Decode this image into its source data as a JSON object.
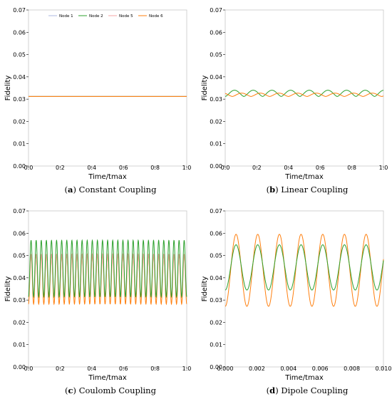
{
  "chart_data": [
    {
      "type": "line",
      "panel_letter": "a",
      "caption": "Constant Coupling",
      "xlabel": "Time/tmax",
      "ylabel": "Fidelity",
      "xlim": [
        0.0,
        1.0
      ],
      "ylim": [
        0.0,
        0.07
      ],
      "xticks": [
        "0.0",
        "0.2",
        "0.4",
        "0.6",
        "0.8",
        "1.0"
      ],
      "yticks": [
        "0.00",
        "0.01",
        "0.02",
        "0.03",
        "0.04",
        "0.05",
        "0.06",
        "0.07"
      ],
      "legend": "top",
      "grid": false,
      "series": [
        {
          "name": "Node 1",
          "color": "#aeb8e0",
          "pattern": {
            "kind": "flat",
            "value": 0.0312
          }
        },
        {
          "name": "Node 2",
          "color": "#2ca02c",
          "pattern": {
            "kind": "flat",
            "value": 0.0312
          }
        },
        {
          "name": "Node 5",
          "color": "#f4a6a6",
          "pattern": {
            "kind": "flat",
            "value": 0.0312
          }
        },
        {
          "name": "Node 6",
          "color": "#ff7f0e",
          "pattern": {
            "kind": "flat",
            "value": 0.0312
          }
        }
      ]
    },
    {
      "type": "line",
      "panel_letter": "b",
      "caption": "Linear Coupling",
      "xlabel": "Time/tmax",
      "ylabel": "Fidelity",
      "xlim": [
        0.0,
        1.0
      ],
      "ylim": [
        0.0,
        0.07
      ],
      "xticks": [
        "0.0",
        "0.2",
        "0.4",
        "0.6",
        "0.8",
        "1.0"
      ],
      "yticks": [
        "0.00",
        "0.01",
        "0.02",
        "0.03",
        "0.04",
        "0.05",
        "0.06",
        "0.07"
      ],
      "grid": false,
      "series": [
        {
          "color": "#2ca02c",
          "pattern": {
            "kind": "bumps",
            "base": 0.0312,
            "amp": 0.0028,
            "period": 0.118,
            "phase": 0.0
          }
        },
        {
          "color": "#ff7f0e",
          "pattern": {
            "kind": "bumps",
            "base": 0.0312,
            "amp": 0.0015,
            "period": 0.118,
            "phase": 0.045
          }
        }
      ]
    },
    {
      "type": "line",
      "panel_letter": "c",
      "caption": "Coulomb Coupling",
      "xlabel": "Time/tmax",
      "ylabel": "Fidelity",
      "xlim": [
        0.0,
        1.0
      ],
      "ylim": [
        0.0,
        0.07
      ],
      "xticks": [
        "0.0",
        "0.2",
        "0.4",
        "0.6",
        "0.8",
        "1.0"
      ],
      "yticks": [
        "0.00",
        "0.01",
        "0.02",
        "0.03",
        "0.04",
        "0.05",
        "0.06",
        "0.07"
      ],
      "grid": false,
      "series": [
        {
          "color": "#ff7f0e",
          "pattern": {
            "kind": "oscill",
            "lo": 0.0282,
            "hi": 0.0505,
            "cycles": 31
          }
        },
        {
          "color": "#f4a6a6",
          "pattern": {
            "kind": "oscill",
            "lo": 0.0315,
            "hi": 0.0505,
            "cycles": 31
          }
        },
        {
          "color": "#2ca02c",
          "pattern": {
            "kind": "oscill",
            "lo": 0.0315,
            "hi": 0.0568,
            "cycles": 31
          }
        }
      ]
    },
    {
      "type": "line",
      "panel_letter": "d",
      "caption": "Dipole Coupling",
      "xlabel": "Time/tmax",
      "ylabel": "Fidelity",
      "xlim": [
        0.0,
        0.01
      ],
      "ylim": [
        0.0,
        0.07
      ],
      "xticks": [
        "0.000",
        "0.002",
        "0.004",
        "0.006",
        "0.008",
        "0.010"
      ],
      "yticks": [
        "0.00",
        "0.01",
        "0.02",
        "0.03",
        "0.04",
        "0.05",
        "0.06",
        "0.07"
      ],
      "grid": false,
      "series": [
        {
          "color": "#ff7f0e",
          "pattern": {
            "kind": "oscill",
            "lo": 0.0272,
            "hi": 0.0595,
            "cycles": 7.3
          }
        },
        {
          "color": "#2ca02c",
          "pattern": {
            "kind": "oscill",
            "lo": 0.0345,
            "hi": 0.0548,
            "cycles": 7.3
          }
        }
      ]
    }
  ]
}
